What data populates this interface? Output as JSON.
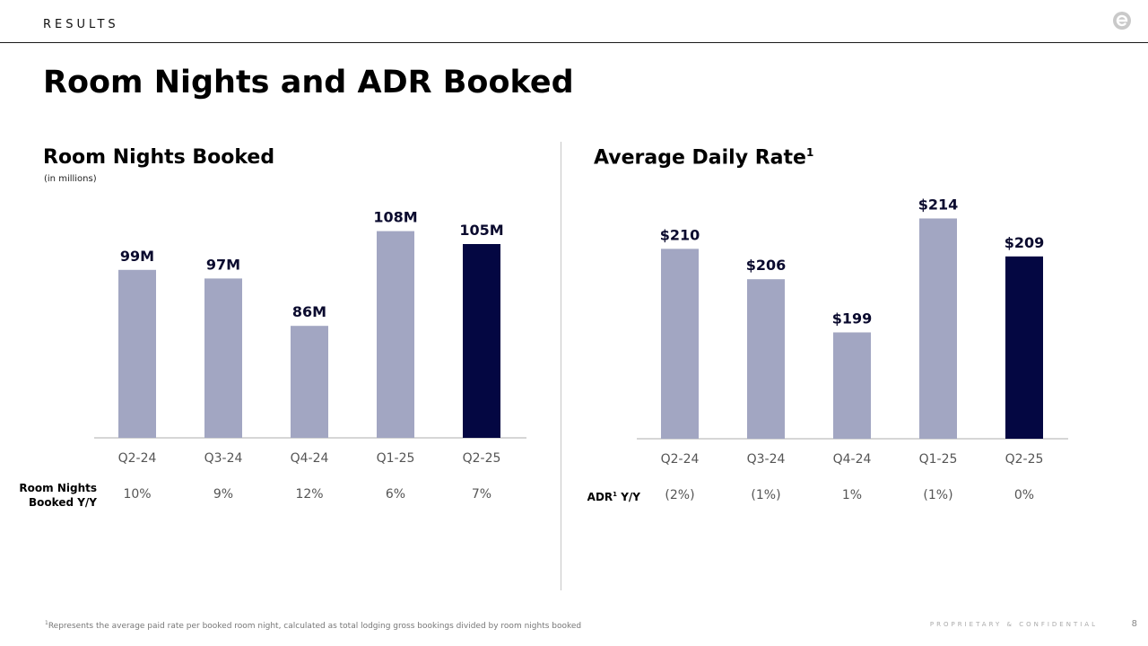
{
  "header": {
    "section_label": "RESULTS",
    "title": "Room Nights and ADR Booked"
  },
  "left_panel": {
    "title": "Room Nights Booked",
    "note": "(in millions)",
    "row_label_line1": "Room Nights",
    "row_label_line2": "Booked Y/Y"
  },
  "right_panel": {
    "title": "Average Daily Rate",
    "title_sup": "1",
    "row_label_prefix": "ADR",
    "row_label_sup": "1",
    "row_label_suffix": " Y/Y"
  },
  "footer": {
    "footnote_sup": "1",
    "footnote": "Represents the average paid rate per booked room night, calculated as total lodging gross bookings divided by room nights booked",
    "confidential": "PROPRIETARY & CONFIDENTIAL",
    "page_number": "8"
  },
  "colors": {
    "bar_default": "#a2a6c2",
    "bar_highlight": "#040742",
    "axis": "#c9c9c9",
    "tick_text": "#555555"
  },
  "chart_data": [
    {
      "type": "bar",
      "title": "Room Nights Booked",
      "subtitle": "(in millions)",
      "categories": [
        "Q2-24",
        "Q3-24",
        "Q4-24",
        "Q1-25",
        "Q2-25"
      ],
      "values": [
        99,
        97,
        86,
        108,
        105
      ],
      "data_labels": [
        "99M",
        "97M",
        "86M",
        "108M",
        "105M"
      ],
      "highlight_index": 4,
      "yoy": [
        "10%",
        "9%",
        "12%",
        "6%",
        "7%"
      ],
      "ylim": [
        60,
        110
      ]
    },
    {
      "type": "bar",
      "title": "Average Daily Rate",
      "categories": [
        "Q2-24",
        "Q3-24",
        "Q4-24",
        "Q1-25",
        "Q2-25"
      ],
      "values": [
        210,
        206,
        199,
        214,
        209
      ],
      "data_labels": [
        "$210",
        "$206",
        "$199",
        "$214",
        "$209"
      ],
      "highlight_index": 4,
      "yoy": [
        "(2%)",
        "(1%)",
        "1%",
        "(1%)",
        "0%"
      ],
      "ylim": [
        185,
        215
      ]
    }
  ]
}
